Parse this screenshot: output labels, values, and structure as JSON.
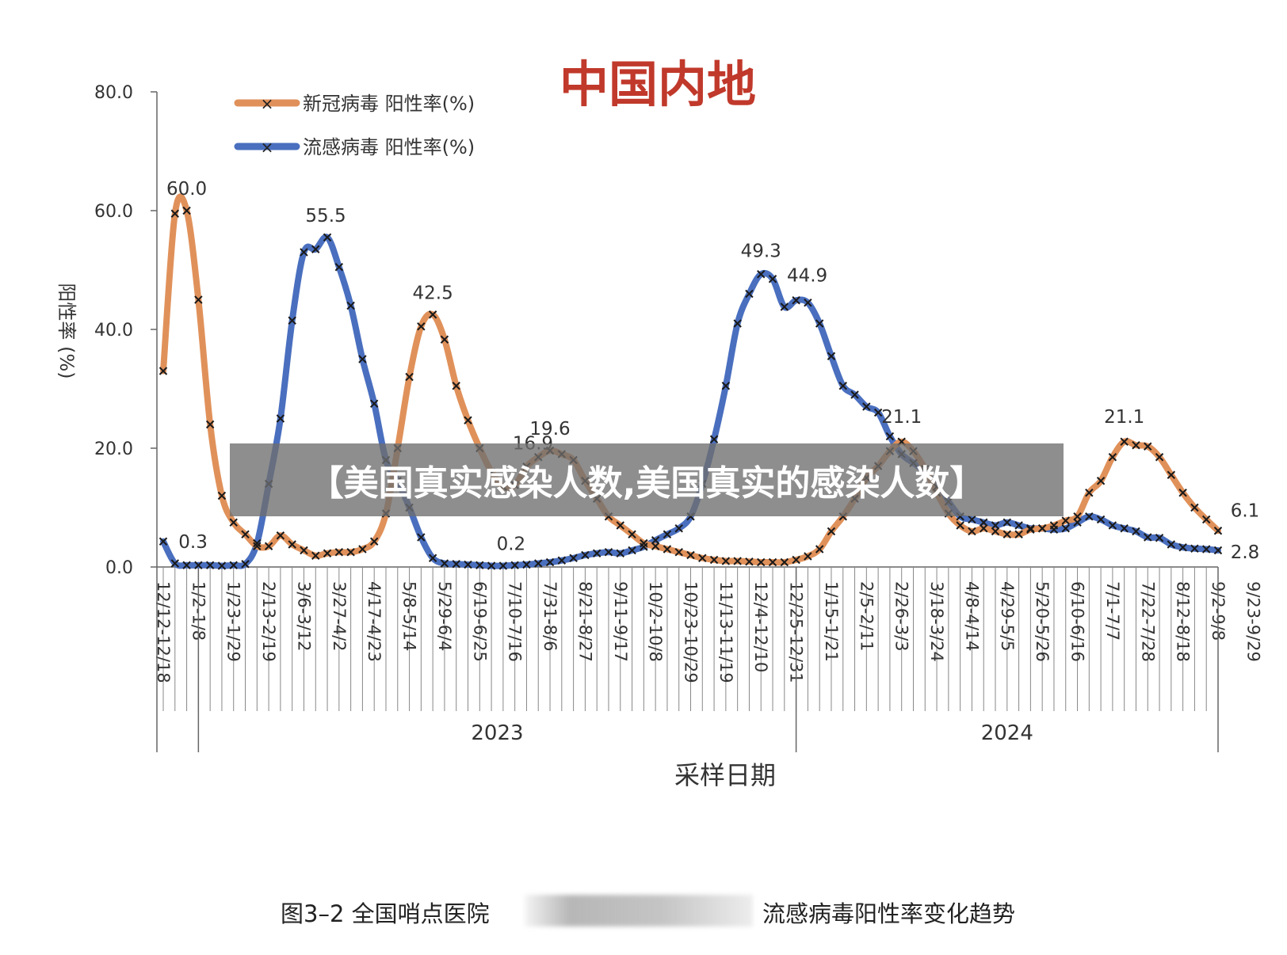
{
  "chart_data": {
    "type": "line",
    "title": "中国内地",
    "ylabel": "阳性率 (%)",
    "xlabel": "采样日期",
    "ylim": [
      0,
      80
    ],
    "yticks": [
      "0.0",
      "20.0",
      "40.0",
      "60.0",
      "80.0"
    ],
    "legend_position": "top-left",
    "grid": false,
    "years": [
      "2023",
      "2024"
    ],
    "x_tick_labels": [
      "12/12-12/18",
      "1/2-1/8",
      "1/23-1/29",
      "2/13-2/19",
      "3/6-3/12",
      "3/27-4/2",
      "4/17-4/23",
      "5/8-5/14",
      "5/29-6/4",
      "6/19-6/25",
      "7/10-7/16",
      "7/31-8/6",
      "8/21-8/27",
      "9/11-9/17",
      "10/2-10/8",
      "10/23-10/29",
      "11/13-11/19",
      "12/4-12/10",
      "12/25-12/31",
      "1/15-1/21",
      "2/5-2/11",
      "2/26-3/3",
      "3/18-3/24",
      "4/8-4/14",
      "4/29-5/5",
      "5/20-5/26",
      "6/10-6/16",
      "7/1-7/7",
      "7/22-7/28",
      "8/12-8/18",
      "9/2-9/8",
      "9/23-9/29"
    ],
    "series": [
      {
        "name": "新冠病毒 阳性率(%)",
        "color": "#E0915A",
        "values": [
          33.0,
          59.5,
          60.0,
          45.0,
          24.0,
          12.0,
          7.5,
          5.5,
          3.5,
          3.5,
          5.3,
          3.8,
          2.8,
          1.9,
          2.3,
          2.5,
          2.5,
          3.0,
          4.3,
          9.0,
          20.0,
          32.0,
          40.5,
          42.5,
          38.3,
          30.5,
          24.7,
          20.0,
          16.0,
          13.5,
          13.8,
          16.9,
          18.5,
          19.6,
          19.0,
          18.0,
          14.5,
          11.5,
          8.5,
          7.0,
          5.5,
          4.0,
          3.5,
          3.0,
          2.5,
          2.0,
          1.5,
          1.2,
          1.0,
          1.0,
          0.9,
          0.8,
          0.8,
          0.8,
          1.2,
          1.8,
          3.0,
          6.0,
          8.5,
          11.5,
          15.0,
          17.0,
          19.5,
          21.1,
          19.5,
          16.5,
          12.5,
          9.0,
          7.0,
          6.0,
          6.5,
          6.0,
          5.5,
          5.5,
          6.3,
          6.5,
          7.0,
          7.8,
          8.5,
          12.5,
          14.5,
          18.5,
          21.1,
          20.5,
          20.3,
          18.5,
          15.5,
          12.5,
          10.0,
          8.0,
          6.1
        ]
      },
      {
        "name": "流感病毒 阳性率(%)",
        "color": "#4A6FBF",
        "values": [
          4.3,
          0.6,
          0.3,
          0.3,
          0.3,
          0.2,
          0.3,
          0.5,
          4.0,
          14.0,
          25.0,
          41.5,
          53.0,
          53.5,
          55.5,
          50.5,
          44.0,
          35.0,
          27.5,
          18.0,
          14.5,
          10.0,
          5.0,
          1.5,
          0.6,
          0.5,
          0.4,
          0.3,
          0.2,
          0.2,
          0.3,
          0.4,
          0.6,
          0.8,
          1.1,
          1.5,
          2.0,
          2.3,
          2.5,
          2.3,
          2.8,
          3.4,
          4.5,
          5.5,
          6.5,
          8.5,
          14.0,
          21.5,
          30.5,
          41.0,
          46.0,
          49.3,
          48.5,
          43.8,
          44.9,
          44.5,
          41.0,
          35.5,
          30.5,
          29.0,
          27.0,
          26.0,
          22.0,
          19.0,
          17.5,
          16.0,
          13.5,
          11.0,
          8.5,
          8.0,
          7.5,
          7.0,
          7.5,
          7.0,
          6.5,
          6.5,
          6.3,
          6.5,
          7.5,
          8.5,
          8.0,
          7.0,
          6.5,
          6.0,
          5.0,
          4.9,
          3.8,
          3.3,
          3.1,
          3.0,
          2.8
        ]
      }
    ],
    "data_labels": [
      {
        "series": 0,
        "index": 2,
        "text": "60.0"
      },
      {
        "series": 0,
        "index": 23,
        "text": "42.5"
      },
      {
        "series": 0,
        "index": 31,
        "text": "16.9"
      },
      {
        "series": 0,
        "index": 33,
        "text": "19.6"
      },
      {
        "series": 0,
        "index": 63,
        "text": "21.1"
      },
      {
        "series": 0,
        "index": 82,
        "text": "21.1"
      },
      {
        "series": 0,
        "index": 90,
        "text": "6.1"
      },
      {
        "series": 1,
        "index": 2,
        "text": "0.3"
      },
      {
        "series": 1,
        "index": 14,
        "text": "55.5"
      },
      {
        "series": 1,
        "index": 29,
        "text": "0.2"
      },
      {
        "series": 1,
        "index": 51,
        "text": "49.3"
      },
      {
        "series": 1,
        "index": 54,
        "text": "44.9"
      },
      {
        "series": 1,
        "index": 90,
        "text": "2.8"
      }
    ]
  },
  "banner_text": "【美国真实感染人数,美国真实的感染人数】",
  "caption_left": "图3–2 全国哨点医院",
  "caption_right": "流感病毒阳性率变化趋势"
}
